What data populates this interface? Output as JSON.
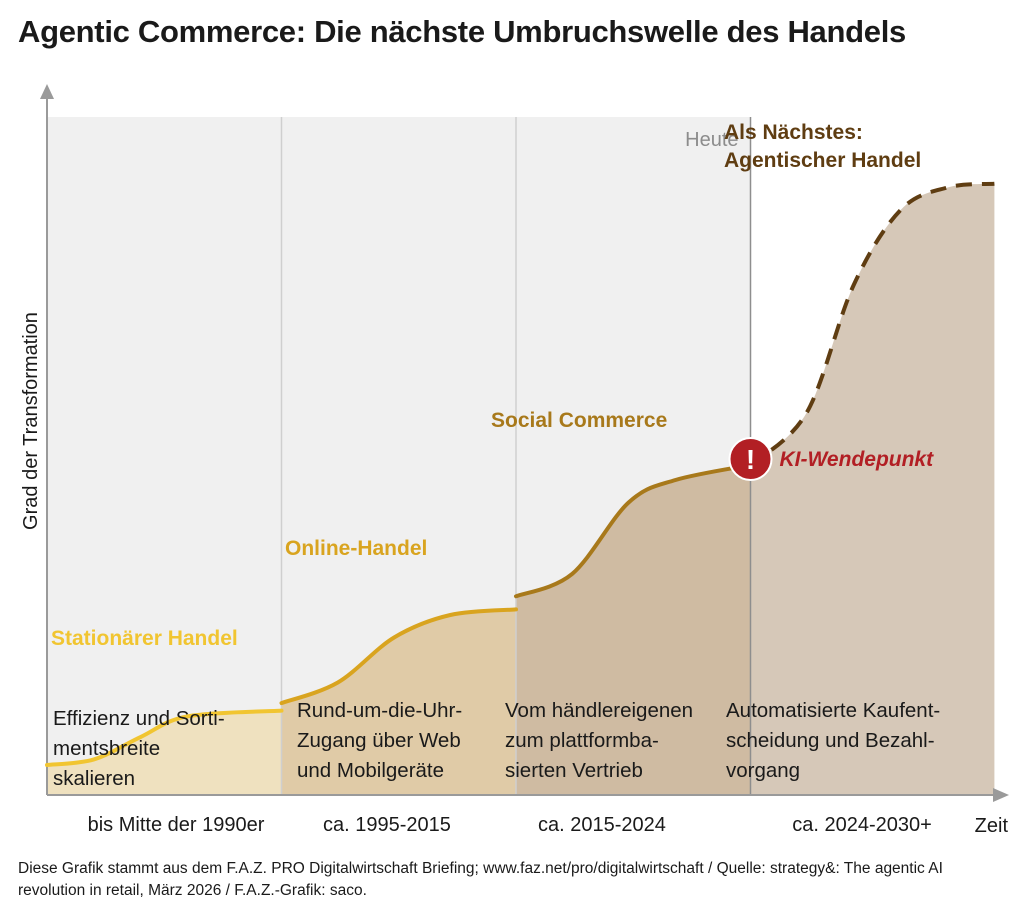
{
  "header": {
    "title": "Agentic Commerce: Die nächste Umbruchswelle des Handels"
  },
  "chart_data": {
    "type": "area",
    "title": "Agentic Commerce: Die nächste Umbruchswelle des Handels",
    "xlabel": "Zeit",
    "ylabel": "Grad der Transformation",
    "today_marker": "Heute",
    "turning_point": {
      "label": "KI-Wendepunkt",
      "symbol": "!"
    },
    "colors": {
      "stationaer": "#f1c531",
      "online": "#d9a41f",
      "social": "#a8791b",
      "agentic": "#5f3d12",
      "turning_point": "#b21f24",
      "today": "#8e8e8e",
      "past_bg": "#f0f0f0"
    },
    "phases": [
      {
        "id": "stationaer",
        "name": "Stationärer Handel",
        "period": "bis Mitte der 1990er",
        "description_lines": [
          "Effizienz und Sorti-",
          "mentsbreite",
          "skalieren"
        ],
        "curve": {
          "x": [
            0,
            0.5,
            1.0,
            1.5,
            2.5
          ],
          "y": [
            0.8,
            0.95,
            1.55,
            2.1,
            2.25
          ]
        },
        "dashed": false
      },
      {
        "id": "online",
        "name": "Online-Handel",
        "period": "ca. 1995-2015",
        "description_lines": [
          "Rund-um-die-Uhr-",
          "Zugang über Web",
          "und Mobilgeräte"
        ],
        "curve": {
          "x": [
            2.5,
            3.1,
            3.7,
            4.3,
            5.0
          ],
          "y": [
            2.45,
            3.0,
            4.2,
            4.8,
            4.95
          ]
        },
        "dashed": false
      },
      {
        "id": "social",
        "name": "Social Commerce",
        "period": "ca. 2015-2024",
        "description_lines": [
          "Vom händlereigenen",
          "zum plattformba-",
          "sierten Vertrieb"
        ],
        "curve": {
          "x": [
            5.0,
            5.6,
            6.2,
            6.7,
            7.5
          ],
          "y": [
            5.3,
            5.9,
            7.8,
            8.4,
            8.8
          ]
        },
        "dashed": false
      },
      {
        "id": "agentic",
        "name": "Als Nächstes: Agentischer Handel",
        "name_lines": [
          "Als Nächstes:",
          "Agentischer Handel"
        ],
        "period": "ca. 2024-2030+",
        "description_lines": [
          "Automatisierte Kaufent-",
          "scheidung und Bezahl-",
          "vorgang"
        ],
        "curve": {
          "x": [
            7.5,
            8.1,
            8.6,
            9.1,
            9.6,
            10.1
          ],
          "y": [
            8.8,
            10.2,
            13.6,
            15.6,
            16.2,
            16.3
          ]
        },
        "dashed": true
      }
    ]
  },
  "footer": {
    "source_note": "Diese Grafik stammt aus dem F.A.Z. PRO Digitalwirtschaft Briefing; www.faz.net/pro/digitalwirtschaft / Quelle: strategy&: The agentic AI revolution in retail, März 2026 / F.A.Z.-Grafik: saco."
  }
}
